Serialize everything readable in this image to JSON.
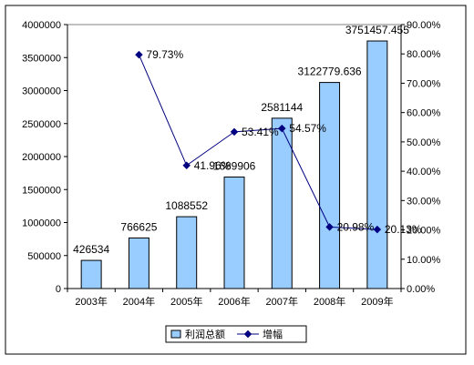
{
  "chart_data": {
    "type": "bar",
    "categories": [
      "2003年",
      "2004年",
      "2005年",
      "2006年",
      "2007年",
      "2008年",
      "2009年"
    ],
    "series": [
      {
        "name": "利润总额",
        "type": "bar",
        "axis": "left",
        "values": [
          426534,
          766625,
          1088552,
          1689906,
          2581144,
          3122779.636,
          3751457.455
        ],
        "labels": [
          "426534",
          "766625",
          "1088552",
          "1689906",
          "2581144",
          "3122779.636",
          "3751457.455"
        ],
        "color": "#99ccff"
      },
      {
        "name": "增幅",
        "type": "line",
        "axis": "right",
        "values": [
          null,
          79.73,
          41.96,
          53.41,
          54.57,
          20.98,
          20.13
        ],
        "labels": [
          "",
          "79.73%",
          "41.96%",
          "53.41%",
          "54.57%",
          "20.98%",
          "20.13%"
        ],
        "color": "#000080"
      }
    ],
    "yleft": {
      "lim": [
        0,
        4000000
      ],
      "ticks": [
        "0",
        "500000",
        "1000000",
        "1500000",
        "2000000",
        "2500000",
        "3000000",
        "3500000",
        "4000000"
      ]
    },
    "yright": {
      "lim": [
        0,
        90
      ],
      "ticks": [
        "0.00%",
        "10.00%",
        "20.00%",
        "30.00%",
        "40.00%",
        "50.00%",
        "60.00%",
        "70.00%",
        "80.00%",
        "90.00%"
      ]
    },
    "legend": {
      "placement": "bottom",
      "items": [
        "利润总额",
        "增幅"
      ]
    },
    "grid": false
  }
}
